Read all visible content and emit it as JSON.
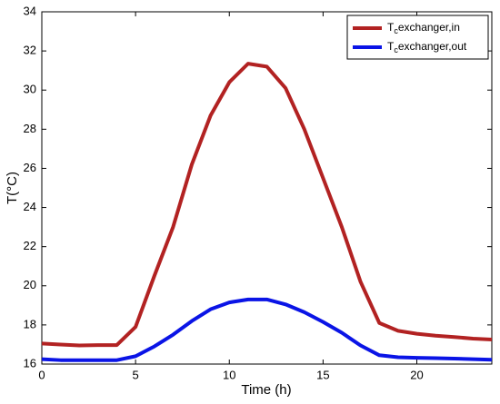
{
  "chart_data": {
    "type": "line",
    "x": [
      0,
      1,
      2,
      3,
      4,
      5,
      6,
      7,
      8,
      9,
      10,
      11,
      12,
      13,
      14,
      15,
      16,
      17,
      18,
      19,
      20,
      21,
      22,
      23,
      24
    ],
    "series": [
      {
        "name": "Tcexchanger,in",
        "color": "#b22222",
        "values": [
          17.05,
          17.0,
          16.95,
          16.97,
          16.97,
          17.9,
          20.5,
          23.0,
          26.2,
          28.7,
          30.4,
          31.35,
          31.2,
          30.1,
          28.0,
          25.5,
          23.0,
          20.2,
          18.1,
          17.7,
          17.55,
          17.45,
          17.38,
          17.3,
          17.25
        ]
      },
      {
        "name": "Tcexchanger,out",
        "color": "#0a14e6",
        "values": [
          16.25,
          16.2,
          16.2,
          16.2,
          16.2,
          16.4,
          16.9,
          17.5,
          18.2,
          18.8,
          19.15,
          19.3,
          19.3,
          19.05,
          18.65,
          18.15,
          17.6,
          16.95,
          16.45,
          16.35,
          16.32,
          16.3,
          16.28,
          16.25,
          16.22
        ]
      }
    ],
    "xlabel": "Time (h)",
    "ylabel": "T(°C)",
    "xlim": [
      0,
      24
    ],
    "ylim": [
      16,
      34
    ],
    "xticks": [
      0,
      5,
      10,
      15,
      20
    ],
    "yticks": [
      16,
      18,
      20,
      22,
      24,
      26,
      28,
      30,
      32,
      34
    ],
    "legend": "upper right"
  }
}
